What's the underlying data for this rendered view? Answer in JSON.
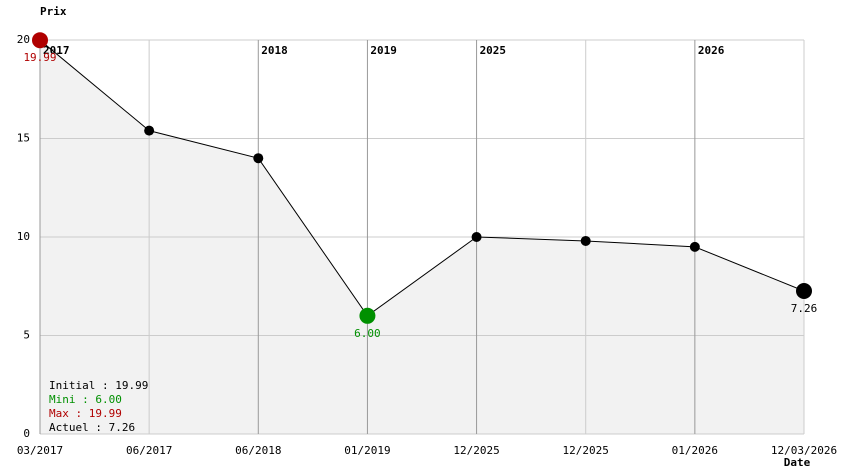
{
  "chart_data": {
    "type": "line",
    "y_label": "Prix",
    "x_label": "Date",
    "categories": [
      "03/2017",
      "06/2017",
      "06/2018",
      "01/2019",
      "12/2025",
      "12/2025",
      "01/2026",
      "12/03/2026"
    ],
    "values": [
      19.99,
      15.4,
      14.0,
      6.0,
      10.0,
      9.8,
      9.5,
      7.26
    ],
    "value_labels": [
      "19.99",
      null,
      null,
      "6.00",
      null,
      null,
      null,
      "7.26"
    ],
    "point_colors": [
      "#b00000",
      "#000000",
      "#000000",
      "#009000",
      "#000000",
      "#000000",
      "#000000",
      "#000000"
    ],
    "year_markers": [
      "2017",
      null,
      "2018",
      "2019",
      "2025",
      null,
      "2026",
      null
    ],
    "ylim": [
      0,
      20
    ],
    "yticks": [
      0,
      5,
      10,
      15,
      20
    ],
    "grid": true,
    "area_color": "#f2f2f2",
    "line_color": "#000000",
    "legend": [
      {
        "text": "Initial : 19.99",
        "color": "#000000"
      },
      {
        "text": "Mini : 6.00",
        "color": "#009000"
      },
      {
        "text": "Max : 19.99",
        "color": "#b00000"
      },
      {
        "text": "Actuel : 7.26",
        "color": "#000000"
      }
    ]
  }
}
